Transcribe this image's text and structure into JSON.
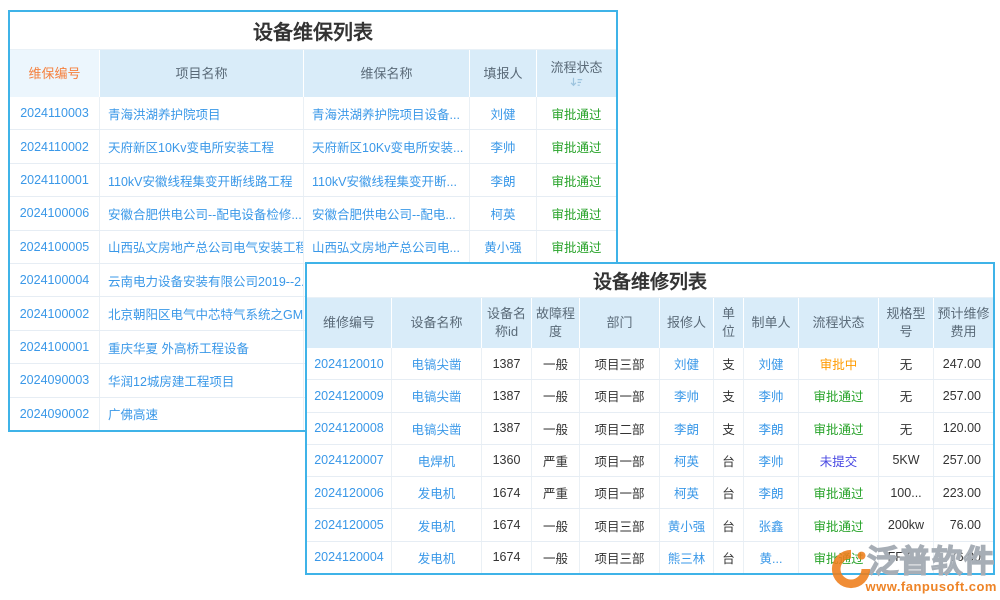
{
  "status_colors": {
    "审批通过": "#28a32a",
    "审批中": "#ff9b00",
    "未提交": "#4747e2"
  },
  "maintenance_table": {
    "title": "设备维保列表",
    "columns": [
      {
        "label": "维保编号",
        "accent": true
      },
      {
        "label": "项目名称"
      },
      {
        "label": "维保名称"
      },
      {
        "label": "填报人"
      },
      {
        "label": "流程状态",
        "sort_icon": true
      }
    ],
    "rows": [
      [
        "2024110003",
        "青海洪湖养护院项目",
        "青海洪湖养护院项目设备...",
        "刘健",
        "审批通过"
      ],
      [
        "2024110002",
        "天府新区10Kv变电所安装工程",
        "天府新区10Kv变电所安装...",
        "李帅",
        "审批通过"
      ],
      [
        "2024110001",
        "110kV安徽线程集变开断线路工程",
        "110kV安徽线程集变开断...",
        "李朗",
        "审批通过"
      ],
      [
        "2024100006",
        "安徽合肥供电公司--配电设备检修...",
        "安徽合肥供电公司--配电...",
        "柯英",
        "审批通过"
      ],
      [
        "2024100005",
        "山西弘文房地产总公司电气安装工程",
        "山西弘文房地产总公司电...",
        "黄小强",
        "审批通过"
      ],
      [
        "2024100004",
        "云南电力设备安装有限公司2019--2...",
        "",
        "",
        ""
      ],
      [
        "2024100002",
        "北京朝阳区电气中芯特气系统之GM...",
        "",
        "",
        ""
      ],
      [
        "2024100001",
        "重庆华夏 外高桥工程设备",
        "",
        "",
        ""
      ],
      [
        "2024090003",
        "华润12城房建工程项目",
        "",
        "",
        ""
      ],
      [
        "2024090002",
        "广佛高速",
        "",
        "",
        ""
      ]
    ]
  },
  "repair_table": {
    "title": "设备维修列表",
    "columns": [
      {
        "label": "维修编号"
      },
      {
        "label": "设备名称"
      },
      {
        "label": "设备名称id"
      },
      {
        "label": "故障程度"
      },
      {
        "label": "部门"
      },
      {
        "label": "报修人"
      },
      {
        "label": "单位"
      },
      {
        "label": "制单人"
      },
      {
        "label": "流程状态"
      },
      {
        "label": "规格型号"
      },
      {
        "label": "预计维修费用"
      }
    ],
    "rows": [
      [
        "2024120010",
        "电镐尖凿",
        "1387",
        "一般",
        "项目三部",
        "刘健",
        "支",
        "刘健",
        "审批中",
        "无",
        "247.00"
      ],
      [
        "2024120009",
        "电镐尖凿",
        "1387",
        "一般",
        "项目一部",
        "李帅",
        "支",
        "李帅",
        "审批通过",
        "无",
        "257.00"
      ],
      [
        "2024120008",
        "电镐尖凿",
        "1387",
        "一般",
        "项目二部",
        "李朗",
        "支",
        "李朗",
        "审批通过",
        "无",
        "120.00"
      ],
      [
        "2024120007",
        "电焊机",
        "1360",
        "严重",
        "项目一部",
        "柯英",
        "台",
        "李帅",
        "未提交",
        "5KW",
        "257.00"
      ],
      [
        "2024120006",
        "发电机",
        "1674",
        "严重",
        "项目一部",
        "柯英",
        "台",
        "李朗",
        "审批通过",
        "100...",
        "223.00"
      ],
      [
        "2024120005",
        "发电机",
        "1674",
        "一般",
        "项目三部",
        "黄小强",
        "台",
        "张鑫",
        "审批通过",
        "200kw",
        "76.00"
      ],
      [
        "2024120004",
        "发电机",
        "1674",
        "一般",
        "项目三部",
        "熊三林",
        "台",
        "黄...",
        "审批通过",
        "FF-2...",
        "76.00"
      ]
    ]
  },
  "watermark": {
    "brand": "泛普软件",
    "url": "www.fanpusoft.com",
    "logo_color": "#ef7e1b"
  }
}
